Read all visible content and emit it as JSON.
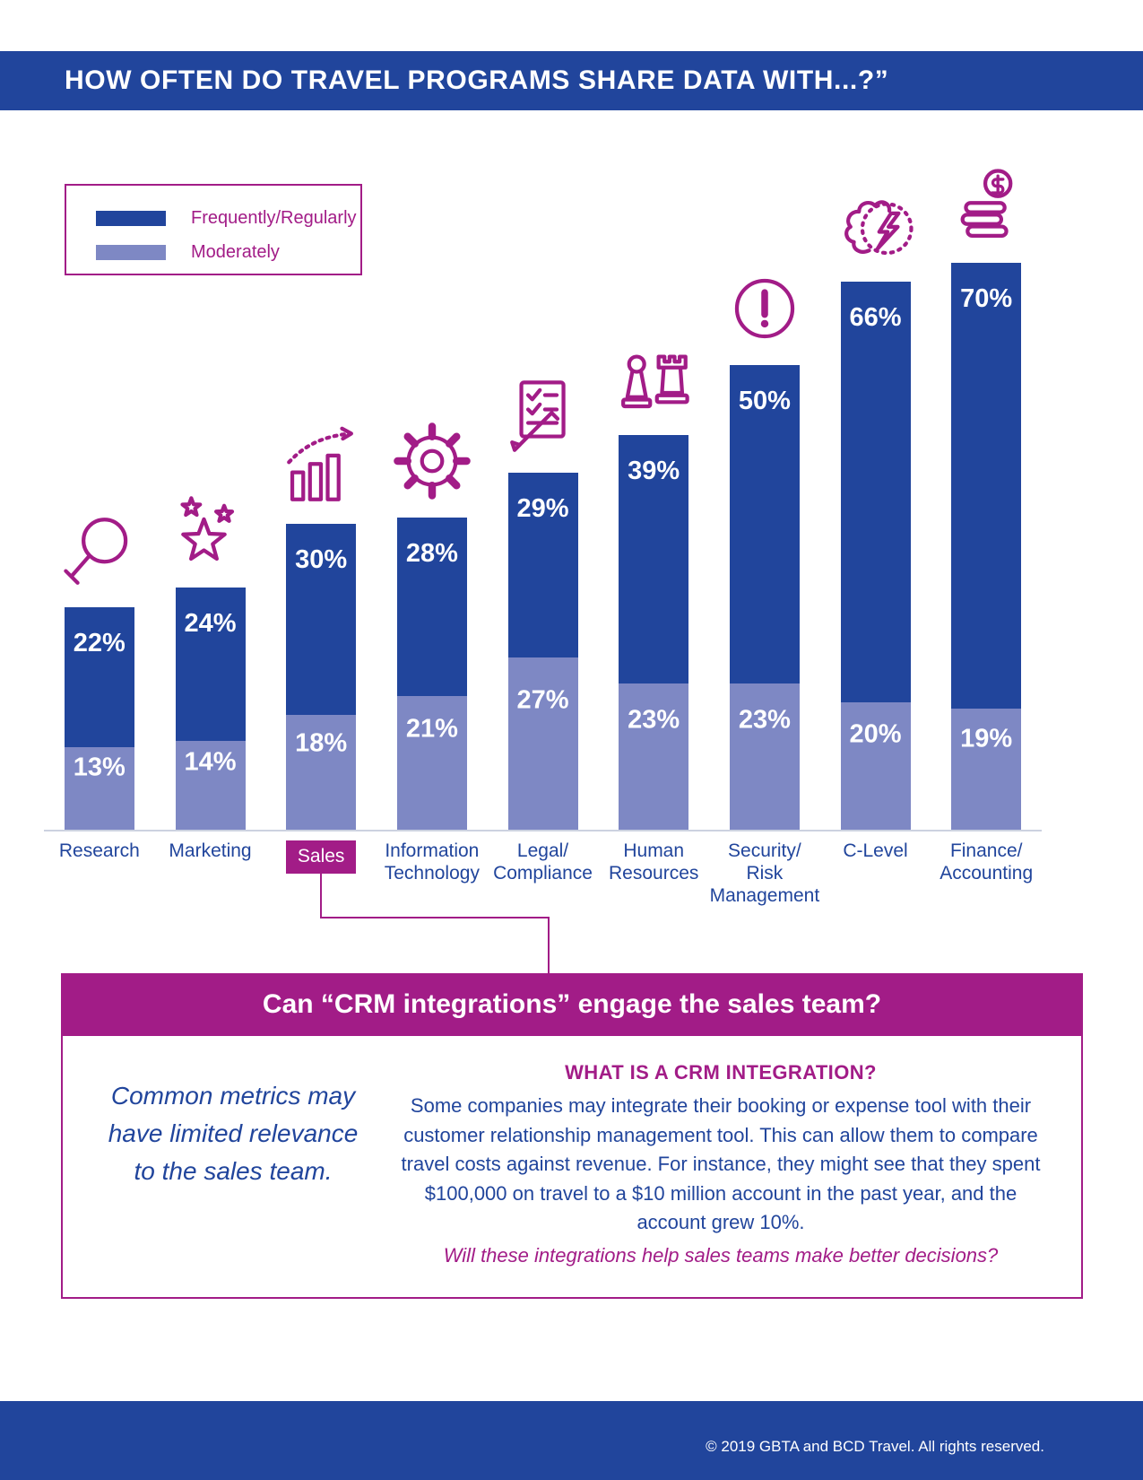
{
  "title": "HOW OFTEN DO TRAVEL PROGRAMS SHARE DATA WITH...?”",
  "legend": {
    "frequently": "Frequently/Regularly",
    "moderately": "Moderately"
  },
  "colors": {
    "dark_blue": "#21459C",
    "periwinkle": "#7E88C4",
    "magenta": "#A21C87"
  },
  "chart_data": {
    "type": "bar",
    "stacked": true,
    "title": "HOW OFTEN DO TRAVEL PROGRAMS SHARE DATA WITH...?”",
    "categories": [
      "Research",
      "Marketing",
      "Sales",
      "Information\nTechnology",
      "Legal/\nCompliance",
      "Human\nResources",
      "Security/\nRisk\nManagement",
      "C-Level",
      "Finance/\nAccounting"
    ],
    "series": [
      {
        "name": "Frequently/Regularly",
        "values": [
          22,
          24,
          30,
          28,
          29,
          39,
          50,
          66,
          70
        ]
      },
      {
        "name": "Moderately",
        "values": [
          13,
          14,
          18,
          21,
          27,
          23,
          23,
          20,
          19
        ]
      }
    ],
    "value_suffix": "%",
    "highlighted_category": "Sales",
    "icons": [
      "magnifier-icon",
      "stars-icon",
      "growth-chart-icon",
      "gear-icon",
      "checklist-pencil-icon",
      "chess-pieces-icon",
      "alert-icon",
      "brain-bolt-icon",
      "money-stack-icon"
    ],
    "legend_position": "top-left",
    "grid": false,
    "ylim": [
      0,
      100
    ]
  },
  "callout": {
    "header": "Can “CRM integrations” engage the sales team?",
    "left_note": "Common metrics may have limited relevance to the sales team.",
    "right_heading": "WHAT IS A CRM INTEGRATION?",
    "right_body": "Some companies may integrate their booking or expense tool with their customer relationship management tool. This can allow them to compare travel costs against revenue. For instance, they might see that they spent $100,000 on travel to a $10 million account in the past year, and the account grew 10%.",
    "right_question": "Will these integrations help sales teams make better decisions?"
  },
  "footer": {
    "copyright": "© 2019 GBTA and BCD Travel. All rights reserved."
  }
}
